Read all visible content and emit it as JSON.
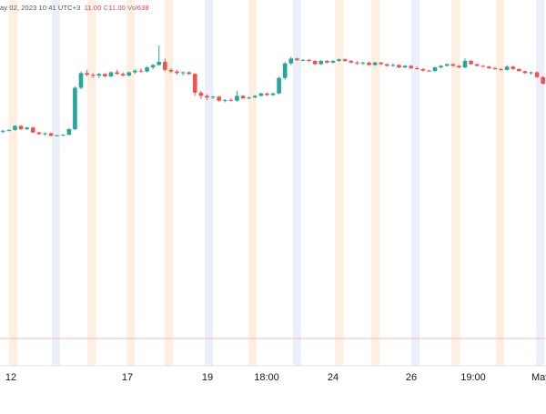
{
  "header": {
    "timestamp_text": "ay 02, 2023 10:41 UTC+3",
    "close_label_partial": "11.00",
    "close_key": "C",
    "close_value": "11.00",
    "vol_key": "Vol",
    "vol_value": "638"
  },
  "colors": {
    "up": "#26a69a",
    "down": "#ef5350",
    "band_orange": "#fde7cf",
    "band_blue": "#dfe6f7",
    "hline": "#f4b9b9",
    "grid": "#f0f3fa"
  },
  "chart_data": {
    "type": "candlestick",
    "x_tick_labels": [
      "12",
      "17",
      "19",
      "18:00",
      "24",
      "26",
      "19:00",
      "May"
    ],
    "x_tick_label_partial_last": true,
    "y_tick_labels": [],
    "grid": false,
    "series": [
      {
        "values": [
          [
            0.0,
            0.1,
            -0.1,
            0.05
          ],
          [
            0.05,
            0.15,
            0.0,
            0.1
          ],
          [
            0.1,
            0.4,
            0.05,
            0.35
          ],
          [
            0.35,
            0.4,
            0.1,
            0.15
          ],
          [
            0.15,
            0.3,
            0.1,
            0.25
          ],
          [
            0.25,
            0.3,
            -0.1,
            -0.05
          ],
          [
            -0.05,
            0.0,
            -0.2,
            -0.15
          ],
          [
            -0.15,
            -0.05,
            -0.25,
            -0.1
          ],
          [
            -0.1,
            -0.05,
            -0.3,
            -0.25
          ],
          [
            -0.25,
            -0.2,
            -0.3,
            -0.22
          ],
          [
            -0.22,
            -0.15,
            -0.25,
            -0.2
          ],
          [
            -0.2,
            0.2,
            -0.2,
            0.15
          ],
          [
            0.15,
            2.8,
            0.1,
            2.7
          ],
          [
            2.7,
            3.7,
            2.6,
            3.6
          ],
          [
            3.6,
            3.8,
            3.4,
            3.5
          ],
          [
            3.5,
            3.6,
            3.3,
            3.45
          ],
          [
            3.45,
            3.6,
            3.3,
            3.55
          ],
          [
            3.55,
            3.6,
            3.35,
            3.4
          ],
          [
            3.4,
            3.7,
            3.35,
            3.65
          ],
          [
            3.65,
            3.8,
            3.5,
            3.55
          ],
          [
            3.55,
            3.65,
            3.4,
            3.45
          ],
          [
            3.45,
            3.7,
            3.4,
            3.65
          ],
          [
            3.65,
            3.85,
            3.55,
            3.75
          ],
          [
            3.75,
            3.9,
            3.6,
            3.7
          ],
          [
            3.7,
            4.0,
            3.65,
            3.95
          ],
          [
            3.95,
            4.15,
            3.85,
            4.1
          ],
          [
            4.1,
            5.3,
            4.05,
            4.3
          ],
          [
            4.3,
            4.5,
            3.7,
            3.8
          ],
          [
            3.8,
            3.9,
            3.6,
            3.7
          ],
          [
            3.7,
            3.8,
            3.5,
            3.6
          ],
          [
            3.6,
            3.7,
            3.45,
            3.65
          ],
          [
            3.65,
            3.7,
            3.5,
            3.55
          ],
          [
            3.55,
            3.6,
            2.2,
            2.4
          ],
          [
            2.4,
            2.5,
            2.0,
            2.2
          ],
          [
            2.2,
            2.3,
            1.95,
            2.1
          ],
          [
            2.1,
            2.2,
            2.0,
            2.15
          ],
          [
            2.15,
            2.2,
            1.85,
            1.9
          ],
          [
            1.9,
            2.0,
            1.8,
            1.95
          ],
          [
            1.95,
            2.05,
            1.85,
            1.9
          ],
          [
            1.9,
            2.5,
            1.85,
            2.2
          ],
          [
            2.2,
            2.25,
            2.0,
            2.05
          ],
          [
            2.05,
            2.15,
            2.0,
            2.1
          ],
          [
            2.1,
            2.25,
            2.05,
            2.2
          ],
          [
            2.2,
            2.4,
            2.15,
            2.35
          ],
          [
            2.35,
            2.4,
            2.2,
            2.25
          ],
          [
            2.25,
            2.4,
            2.2,
            2.35
          ],
          [
            2.35,
            3.4,
            2.3,
            3.3
          ],
          [
            3.3,
            4.3,
            3.2,
            4.2
          ],
          [
            4.2,
            4.6,
            4.1,
            4.5
          ],
          [
            4.5,
            4.55,
            4.35,
            4.4
          ],
          [
            4.4,
            4.45,
            4.35,
            4.42
          ],
          [
            4.42,
            4.45,
            4.3,
            4.35
          ],
          [
            4.35,
            4.4,
            4.1,
            4.15
          ],
          [
            4.15,
            4.4,
            4.1,
            4.35
          ],
          [
            4.35,
            4.4,
            4.2,
            4.25
          ],
          [
            4.25,
            4.4,
            4.2,
            4.35
          ],
          [
            4.35,
            4.5,
            4.3,
            4.45
          ],
          [
            4.45,
            4.5,
            4.3,
            4.35
          ],
          [
            4.35,
            4.4,
            4.2,
            4.25
          ],
          [
            4.25,
            4.35,
            4.1,
            4.2
          ],
          [
            4.2,
            4.3,
            4.1,
            4.25
          ],
          [
            4.25,
            4.3,
            4.05,
            4.1
          ],
          [
            4.1,
            4.3,
            4.05,
            4.25
          ],
          [
            4.25,
            4.3,
            4.1,
            4.15
          ],
          [
            4.15,
            4.2,
            4.0,
            4.05
          ],
          [
            4.05,
            4.2,
            4.0,
            4.1
          ],
          [
            4.1,
            4.15,
            3.9,
            3.95
          ],
          [
            3.95,
            4.1,
            3.9,
            4.05
          ],
          [
            4.05,
            4.1,
            3.85,
            3.9
          ],
          [
            3.9,
            4.0,
            3.8,
            3.85
          ],
          [
            3.85,
            3.9,
            3.7,
            3.75
          ],
          [
            3.75,
            3.8,
            3.7,
            3.72
          ],
          [
            3.72,
            4.0,
            3.7,
            3.95
          ],
          [
            3.95,
            4.1,
            3.9,
            4.05
          ],
          [
            4.05,
            4.2,
            4.0,
            4.15
          ],
          [
            4.15,
            4.2,
            4.0,
            4.05
          ],
          [
            4.05,
            4.1,
            3.9,
            3.95
          ],
          [
            3.95,
            4.5,
            3.9,
            4.35
          ],
          [
            4.35,
            4.4,
            4.1,
            4.15
          ],
          [
            4.15,
            4.2,
            4.0,
            4.05
          ],
          [
            4.05,
            4.1,
            3.95,
            4.0
          ],
          [
            4.0,
            4.05,
            3.85,
            3.9
          ],
          [
            3.9,
            4.0,
            3.8,
            3.85
          ],
          [
            3.85,
            3.9,
            3.75,
            3.8
          ],
          [
            3.8,
            4.1,
            3.75,
            4.0
          ],
          [
            4.0,
            4.05,
            3.8,
            3.85
          ],
          [
            3.85,
            3.9,
            3.7,
            3.72
          ],
          [
            3.72,
            3.75,
            3.55,
            3.6
          ],
          [
            3.6,
            3.7,
            3.5,
            3.65
          ],
          [
            3.65,
            3.7,
            3.3,
            3.35
          ],
          [
            3.35,
            3.4,
            2.9,
            2.95
          ]
        ]
      }
    ],
    "value_columns": [
      "open",
      "high",
      "low",
      "close"
    ]
  }
}
